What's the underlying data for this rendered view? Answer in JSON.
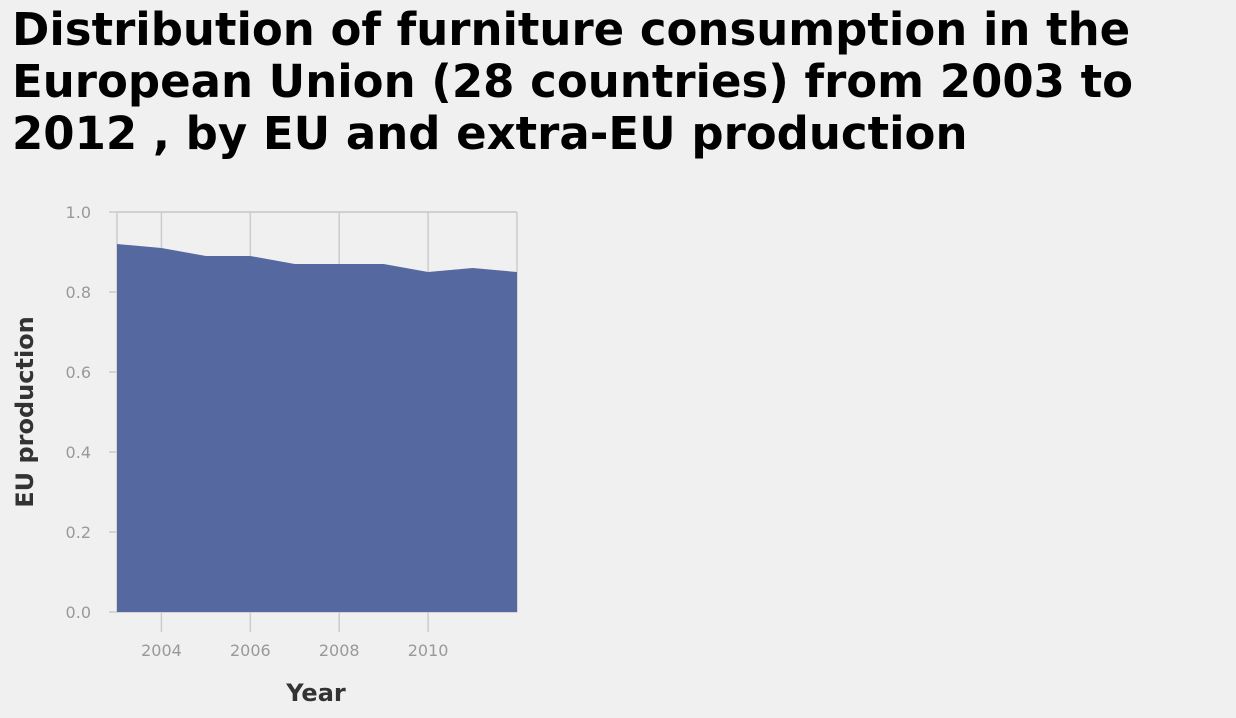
{
  "chart_data": {
    "type": "area",
    "title": "Distribution of furniture consumption in the European Union (28 countries) from 2003 to 2012 , by EU and extra-EU production",
    "xlabel": "Year",
    "ylabel": "EU production",
    "x": [
      2003,
      2004,
      2005,
      2006,
      2007,
      2008,
      2009,
      2010,
      2011,
      2012
    ],
    "series": [
      {
        "values": [
          0.92,
          0.91,
          0.89,
          0.89,
          0.87,
          0.87,
          0.87,
          0.85,
          0.86,
          0.85
        ]
      }
    ],
    "xlim": [
      2003,
      2012
    ],
    "ylim": [
      0,
      1
    ],
    "x_ticks": [
      2004,
      2006,
      2008,
      2010
    ],
    "y_ticks": [
      0,
      0.2,
      0.4,
      0.6,
      0.8,
      1
    ],
    "y_tick_labels": [
      "0.0",
      "0.2",
      "0.4",
      "0.6",
      "0.8",
      "1.0"
    ],
    "grid": true,
    "colors": {
      "area": "#5568a0",
      "grid": "#cccccc",
      "background": "#f0f0f0"
    }
  }
}
